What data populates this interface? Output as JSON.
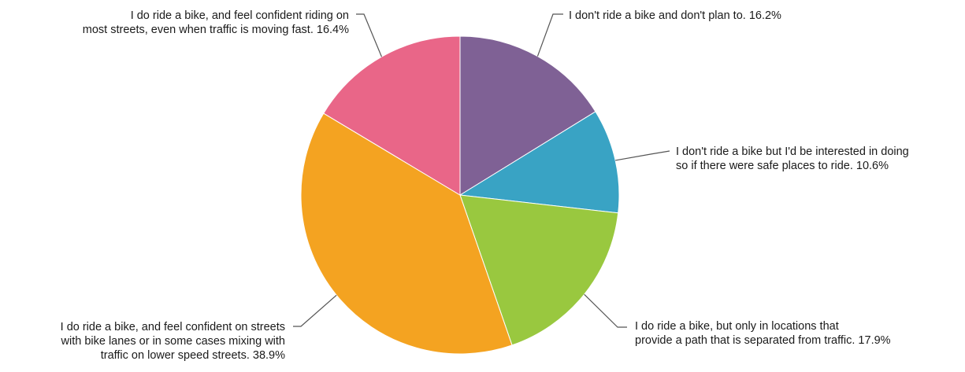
{
  "chart_data": {
    "type": "pie",
    "title": "",
    "start_angle_deg": 0,
    "direction": "clockwise",
    "slices": [
      {
        "label_lines": [
          "I don't ride a bike and don't plan to. 16.2%"
        ],
        "category": "I don't ride a bike and don't plan to.",
        "value": 16.2,
        "color": "#7f6195"
      },
      {
        "label_lines": [
          "I don't ride a bike but I'd be interested in doing",
          "so if there were safe places to ride. 10.6%"
        ],
        "category": "I don't ride a bike but I'd be interested in doing so if there were safe places to ride.",
        "value": 10.6,
        "color": "#39a3c4"
      },
      {
        "label_lines": [
          "I do ride a bike, but only in locations that",
          "provide a path that is separated from traffic. 17.9%"
        ],
        "category": "I do ride a bike, but only in locations that provide a path that is separated from traffic.",
        "value": 17.9,
        "color": "#99c83f"
      },
      {
        "label_lines": [
          "I do ride a bike, and feel confident on streets",
          "with bike lanes or in some cases mixing with",
          "traffic on lower speed streets. 38.9%"
        ],
        "category": "I do ride a bike, and feel confident on streets with bike lanes or in some cases mixing with traffic on lower speed streets.",
        "value": 38.9,
        "color": "#f4a321"
      },
      {
        "label_lines": [
          "I do ride a bike, and feel confident riding on",
          "most streets, even when traffic is moving fast. 16.4%"
        ],
        "category": "I do ride a bike, and feel confident riding on most streets, even when traffic is moving fast.",
        "value": 16.4,
        "color": "#e96688"
      }
    ]
  }
}
